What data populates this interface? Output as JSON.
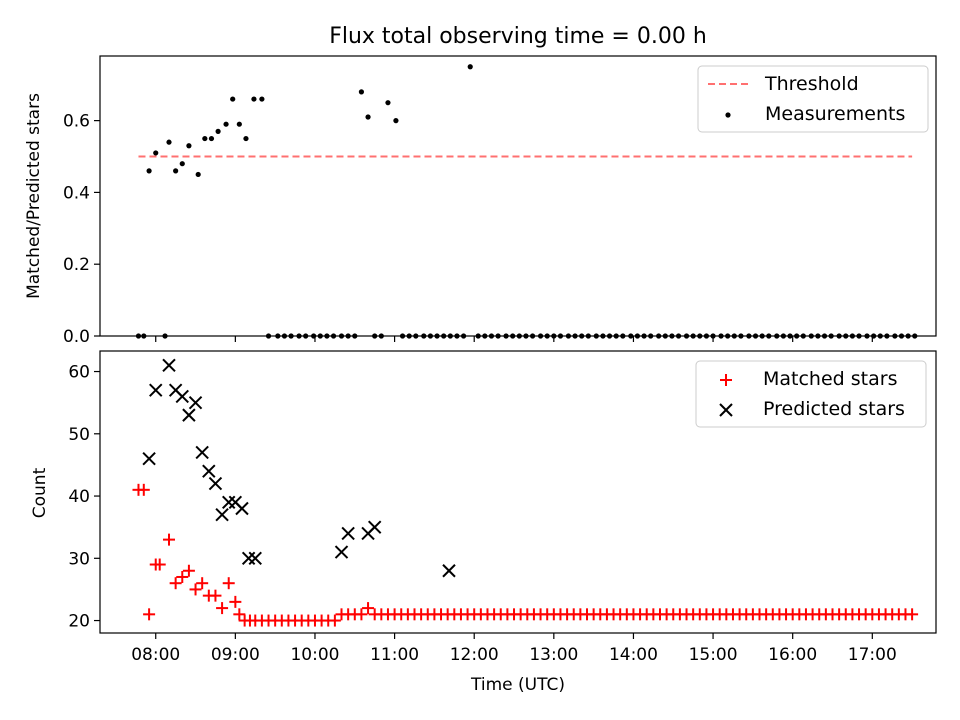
{
  "figure": {
    "title": "Flux total observing time = 0.00 h"
  },
  "chart_data": [
    {
      "type": "scatter",
      "title": "Flux total observing time = 0.00 h",
      "ylabel": "Matched/Predicted stars",
      "ylim": [
        0,
        0.78
      ],
      "y_ticks": [
        0.0,
        0.2,
        0.4,
        0.6
      ],
      "y_tick_labels": [
        "0.0",
        "0.2",
        "0.4",
        "0.6"
      ],
      "legend": {
        "placement": "top-right",
        "entries": [
          "Threshold",
          "Measurements"
        ]
      },
      "threshold": {
        "name": "Threshold",
        "y": 0.5,
        "x_start": "07:47",
        "x_end": "17:30",
        "color": "#ff7070",
        "style": "dashed"
      },
      "series": [
        {
          "name": "Measurements",
          "color": "#000000",
          "marker": "dot",
          "x": [
            "07:47",
            "07:51",
            "07:55",
            "08:00",
            "08:07",
            "08:10",
            "08:15",
            "08:20",
            "08:25",
            "08:32",
            "08:37",
            "08:42",
            "08:47",
            "08:53",
            "08:58",
            "09:03",
            "09:08",
            "09:14",
            "09:20",
            "09:25",
            "09:32",
            "09:37",
            "09:42",
            "09:48",
            "09:53",
            "09:59",
            "10:04",
            "10:09",
            "10:14",
            "10:20",
            "10:25",
            "10:30",
            "10:35",
            "10:40",
            "10:45",
            "10:50",
            "10:55",
            "11:01",
            "11:06",
            "11:11",
            "11:16",
            "11:22",
            "11:27",
            "11:32",
            "11:37",
            "11:42",
            "11:47",
            "11:52",
            "11:57",
            "12:03",
            "12:08",
            "12:13",
            "12:18",
            "12:24",
            "12:29",
            "12:34",
            "12:39",
            "12:44",
            "12:50",
            "12:55",
            "13:00",
            "13:05",
            "13:11",
            "13:16",
            "13:21",
            "13:26",
            "13:32",
            "13:37",
            "13:42",
            "13:47",
            "13:52",
            "13:58",
            "14:03",
            "14:08",
            "14:13",
            "14:19",
            "14:24",
            "14:29",
            "14:34",
            "14:40",
            "14:45",
            "14:50",
            "14:55",
            "15:00",
            "15:06",
            "15:11",
            "15:16",
            "15:21",
            "15:27",
            "15:32",
            "15:37",
            "15:42",
            "15:48",
            "15:53",
            "15:58",
            "16:03",
            "16:08",
            "16:14",
            "16:19",
            "16:24",
            "16:29",
            "16:35",
            "16:40",
            "16:45",
            "16:50",
            "16:56",
            "17:01",
            "17:06",
            "17:11",
            "17:17",
            "17:22",
            "17:27",
            "17:32"
          ],
          "y": [
            0,
            0,
            0.46,
            0.51,
            0,
            0.54,
            0.46,
            0.48,
            0.53,
            0.45,
            0.55,
            0.55,
            0.57,
            0.59,
            0.66,
            0.59,
            0.55,
            0.66,
            0.66,
            0,
            0,
            0,
            0,
            0,
            0,
            0,
            0,
            0,
            0,
            0,
            0,
            0,
            0.68,
            0.61,
            0,
            0,
            0.65,
            0.6,
            0,
            0,
            0,
            0,
            0,
            0,
            0,
            0,
            0,
            0,
            0.75,
            0,
            0,
            0,
            0,
            0,
            0,
            0,
            0,
            0,
            0,
            0,
            0,
            0,
            0,
            0,
            0,
            0,
            0,
            0,
            0,
            0,
            0,
            0,
            0,
            0,
            0,
            0,
            0,
            0,
            0,
            0,
            0,
            0,
            0,
            0,
            0,
            0,
            0,
            0,
            0,
            0,
            0,
            0,
            0,
            0,
            0,
            0,
            0,
            0,
            0,
            0,
            0,
            0,
            0,
            0,
            0,
            0,
            0,
            0,
            0,
            0,
            0,
            0,
            0
          ]
        }
      ]
    },
    {
      "type": "scatter",
      "xlabel": "Time (UTC)",
      "ylabel": "Count",
      "ylim": [
        18,
        63.3
      ],
      "y_ticks": [
        20,
        30,
        40,
        50,
        60
      ],
      "y_tick_labels": [
        "20",
        "30",
        "40",
        "50",
        "60"
      ],
      "x_ticks": [
        "08:00",
        "09:00",
        "10:00",
        "11:00",
        "12:00",
        "13:00",
        "14:00",
        "15:00",
        "16:00",
        "17:00"
      ],
      "xlim": [
        "07:18",
        "17:48"
      ],
      "legend": {
        "placement": "top-right",
        "entries": [
          "Matched stars",
          "Predicted stars"
        ]
      },
      "series": [
        {
          "name": "Matched stars",
          "color": "#ff0000",
          "marker": "plus",
          "x": [
            "07:47",
            "07:51",
            "07:55",
            "08:00",
            "08:03",
            "08:10",
            "08:15",
            "08:20",
            "08:25",
            "08:30",
            "08:35",
            "08:40",
            "08:45",
            "08:50",
            "08:55",
            "09:00",
            "09:03",
            "09:07",
            "09:11",
            "09:15",
            "09:20",
            "09:25",
            "09:30",
            "09:35",
            "09:40",
            "09:45",
            "09:50",
            "09:55",
            "10:00",
            "10:05",
            "10:10",
            "10:15",
            "10:20",
            "10:25",
            "10:30",
            "10:35",
            "10:40",
            "10:45",
            "10:50",
            "10:55",
            "11:00",
            "11:05",
            "11:10",
            "11:15",
            "11:20",
            "11:25",
            "11:30",
            "11:35",
            "11:40",
            "11:45",
            "11:50",
            "11:55",
            "12:00",
            "12:05",
            "12:10",
            "12:15",
            "12:20",
            "12:25",
            "12:30",
            "12:35",
            "12:40",
            "12:45",
            "12:50",
            "12:55",
            "13:00",
            "13:05",
            "13:10",
            "13:15",
            "13:20",
            "13:25",
            "13:30",
            "13:35",
            "13:40",
            "13:45",
            "13:50",
            "13:55",
            "14:00",
            "14:05",
            "14:10",
            "14:15",
            "14:20",
            "14:25",
            "14:30",
            "14:35",
            "14:40",
            "14:45",
            "14:50",
            "14:55",
            "15:00",
            "15:05",
            "15:10",
            "15:15",
            "15:20",
            "15:25",
            "15:30",
            "15:35",
            "15:40",
            "15:45",
            "15:50",
            "15:55",
            "16:00",
            "16:05",
            "16:10",
            "16:15",
            "16:20",
            "16:25",
            "16:30",
            "16:35",
            "16:40",
            "16:45",
            "16:50",
            "16:55",
            "17:00",
            "17:05",
            "17:10",
            "17:15",
            "17:20",
            "17:25",
            "17:30"
          ],
          "y": [
            41,
            41,
            21,
            29,
            29,
            33,
            26,
            27,
            28,
            25,
            26,
            24,
            24,
            22,
            26,
            23,
            21,
            20,
            20,
            20,
            20,
            20,
            20,
            20,
            20,
            20,
            20,
            20,
            20,
            20,
            20,
            20,
            21,
            21,
            21,
            21,
            22,
            21,
            21,
            21,
            21,
            21,
            21,
            21,
            21,
            21,
            21,
            21,
            21,
            21,
            21,
            21,
            21,
            21,
            21,
            21,
            21,
            21,
            21,
            21,
            21,
            21,
            21,
            21,
            21,
            21,
            21,
            21,
            21,
            21,
            21,
            21,
            21,
            21,
            21,
            21,
            21,
            21,
            21,
            21,
            21,
            21,
            21,
            21,
            21,
            21,
            21,
            21,
            21,
            21,
            21,
            21,
            21,
            21,
            21,
            21,
            21,
            21,
            21,
            21,
            21,
            21,
            21,
            21,
            21,
            21,
            21,
            21,
            21,
            21,
            21,
            21,
            21,
            21,
            21,
            21,
            21,
            21,
            21
          ]
        },
        {
          "name": "Predicted stars",
          "color": "#000000",
          "marker": "x",
          "x": [
            "07:55",
            "08:00",
            "08:10",
            "08:15",
            "08:20",
            "08:25",
            "08:30",
            "08:35",
            "08:40",
            "08:45",
            "08:50",
            "08:55",
            "09:00",
            "09:05",
            "09:10",
            "09:15",
            "10:20",
            "10:25",
            "10:40",
            "10:45",
            "11:41"
          ],
          "y": [
            46,
            57,
            61,
            57,
            56,
            53,
            55,
            47,
            44,
            42,
            37,
            39,
            39,
            38,
            30,
            30,
            31,
            34,
            34,
            35,
            28
          ]
        }
      ]
    }
  ]
}
